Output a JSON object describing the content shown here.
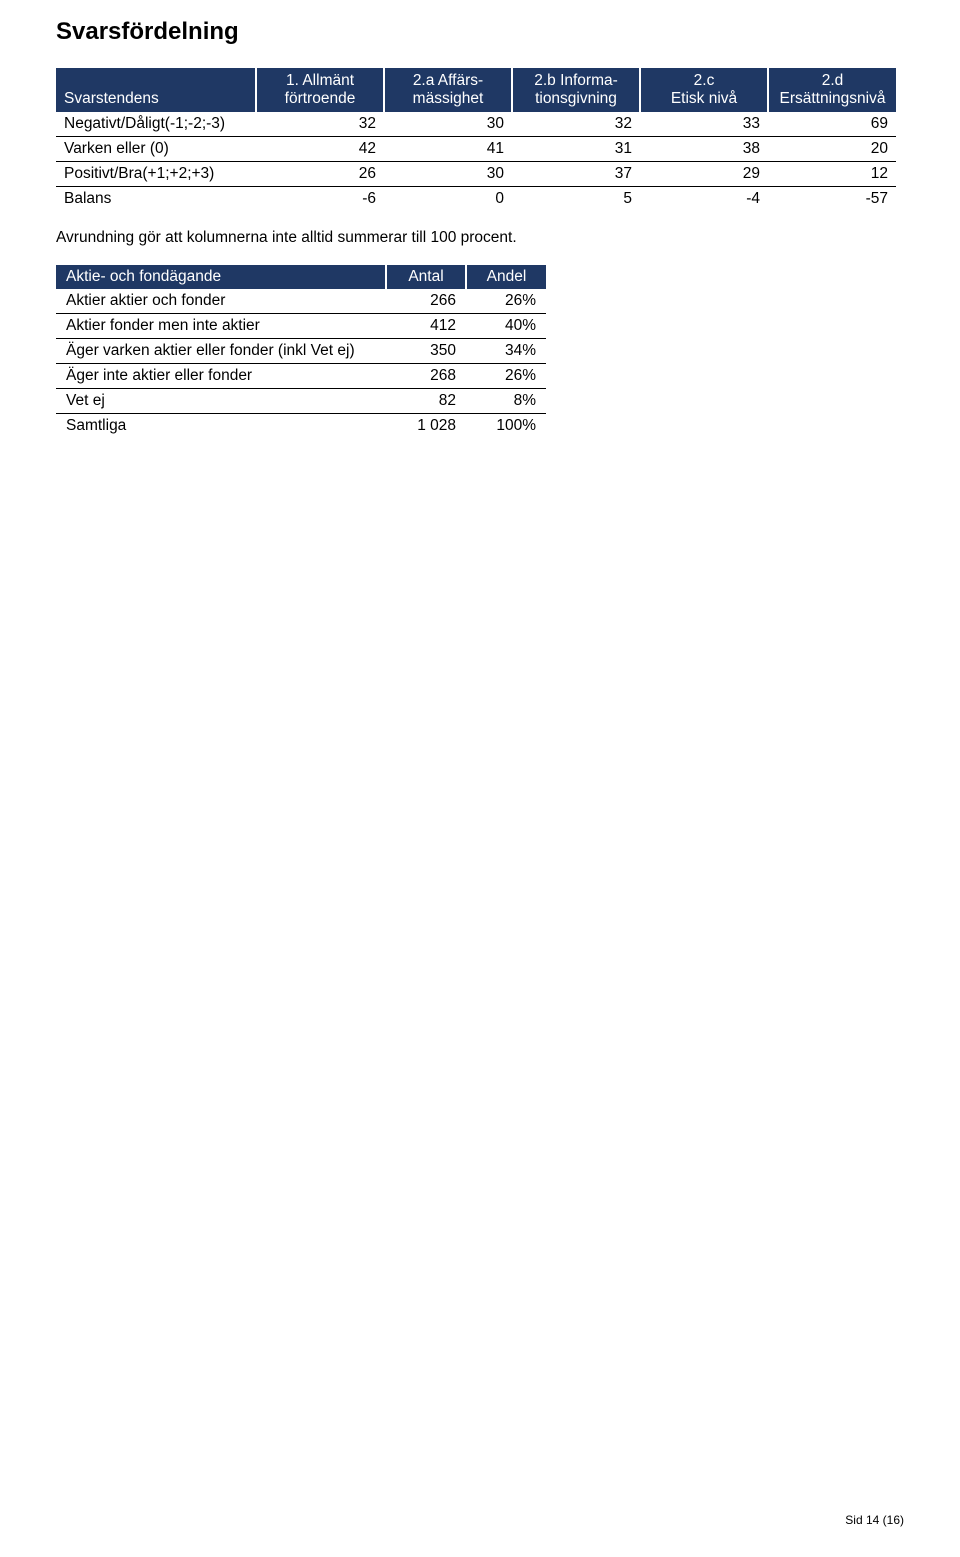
{
  "title": "Svarsfördelning",
  "table1": {
    "headers": [
      "Svarstendens",
      "1. Allmänt\nförtroende",
      "2.a Affärs-\nmässighet",
      "2.b Informa-\ntionsgivning",
      "2.c\nEtisk nivå",
      "2.d\nErsättningsnivå"
    ],
    "rows": [
      {
        "label": "Negativt/Dåligt(-1;-2;-3)",
        "c1": "32",
        "c2": "30",
        "c3": "32",
        "c4": "33",
        "c5": "69"
      },
      {
        "label": "Varken eller (0)",
        "c1": "42",
        "c2": "41",
        "c3": "31",
        "c4": "38",
        "c5": "20"
      },
      {
        "label": "Positivt/Bra(+1;+2;+3)",
        "c1": "26",
        "c2": "30",
        "c3": "37",
        "c4": "29",
        "c5": "12"
      },
      {
        "label": "Balans",
        "c1": "-6",
        "c2": "0",
        "c3": "5",
        "c4": "-4",
        "c5": "-57"
      }
    ]
  },
  "note": "Avrundning gör att kolumnerna inte alltid summerar till 100 procent.",
  "table2": {
    "headers": [
      "Aktie- och fondägande",
      "Antal",
      "Andel"
    ],
    "rows": [
      {
        "label": "Aktier aktier och fonder",
        "antal": "266",
        "andel": "26%"
      },
      {
        "label": "Aktier fonder men inte aktier",
        "antal": "412",
        "andel": "40%"
      },
      {
        "label": "Äger varken aktier eller fonder (inkl Vet ej)",
        "antal": "350",
        "andel": "34%"
      },
      {
        "label": "Äger inte aktier eller fonder",
        "antal": "268",
        "andel": "26%"
      },
      {
        "label": "Vet ej",
        "antal": "82",
        "andel": "8%"
      },
      {
        "label": "Samtliga",
        "antal": "1 028",
        "andel": "100%"
      }
    ]
  },
  "footer": "Sid 14 (16)",
  "colors": {
    "header_bg": "#1f3864",
    "header_fg": "#ffffff",
    "page_bg": "#ffffff",
    "rule": "#000000"
  }
}
